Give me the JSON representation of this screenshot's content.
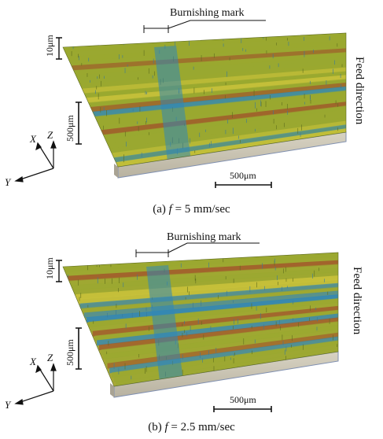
{
  "figure": {
    "panels": [
      {
        "id": "a",
        "caption_prefix": "(a) ",
        "caption_var": "f",
        "caption_value": " = 5 mm/sec",
        "burnishing_label": "Burnishing mark",
        "feed_label": "Feed direction",
        "scale_z": "10μm",
        "scale_x": "500μm",
        "scale_y": "500μm",
        "axes": {
          "x": "X",
          "y": "Y",
          "z": "Z"
        }
      },
      {
        "id": "b",
        "caption_prefix": "(b) ",
        "caption_var": "f",
        "caption_value": " = 2.5 mm/sec",
        "burnishing_label": "Burnishing mark",
        "feed_label": "Feed direction",
        "scale_z": "10μm",
        "scale_x": "500μm",
        "scale_y": "500μm",
        "axes": {
          "x": "X",
          "y": "Y",
          "z": "Z"
        }
      }
    ]
  },
  "colors": {
    "surface_green": "#9aa830",
    "surface_yellow": "#c8c23a",
    "surface_blue": "#2f86b8",
    "surface_red": "#a0542a",
    "base_gray": "#c9c4b4",
    "base_edge": "#7f8fb0"
  }
}
